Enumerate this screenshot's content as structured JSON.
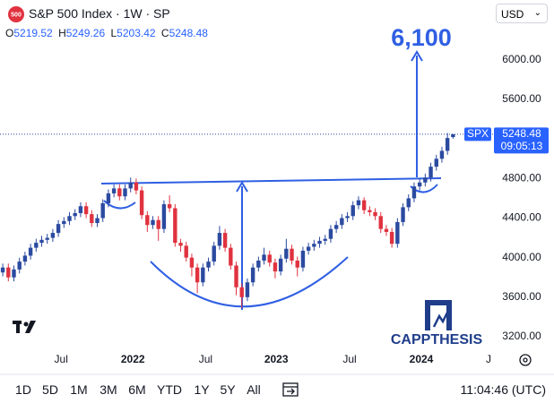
{
  "header": {
    "logo": "500",
    "title": "S&P 500 Index · 1W · SP",
    "currency": "USD",
    "ohlc_labels": [
      "O",
      "H",
      "L",
      "C"
    ]
  },
  "chart_data": {
    "type": "candlestick",
    "up_color": "#2b4aa0",
    "down_color": "#e0323f",
    "annotation_color": "#2f5fe3",
    "annotation": "6,100",
    "watermark": "CAPPTHESIS",
    "symbol": "SPX",
    "countdown": "09:05:13",
    "xlim": [
      -0.5,
      88.2
    ],
    "xticks": [
      {
        "value": 10.5,
        "label": "Jul"
      },
      {
        "value": 23.4,
        "label": "2022"
      },
      {
        "value": 36.5,
        "label": "Jul"
      },
      {
        "value": 49.2,
        "label": "2023"
      },
      {
        "value": 62.4,
        "label": "Jul"
      },
      {
        "value": 75.3,
        "label": "2024"
      },
      {
        "value": 87.4,
        "label": "J"
      }
    ],
    "ylim": [
      3073,
      6606
    ],
    "yticks": [
      {
        "value": 3200,
        "label": "3200.00"
      },
      {
        "value": 3600,
        "label": "3600.00"
      },
      {
        "value": 4000,
        "label": "4000.00"
      },
      {
        "value": 4400,
        "label": "4400.00"
      },
      {
        "value": 4800,
        "label": "4800.00"
      },
      {
        "value": 5600,
        "label": "5600.00"
      },
      {
        "value": 6000,
        "label": "6000.00"
      }
    ],
    "open": [
      3850,
      3900,
      3800,
      3880,
      3960,
      4020,
      4100,
      4150,
      4180,
      4200,
      4250,
      4340,
      4370,
      4420,
      4450,
      4520,
      4440,
      4350,
      4400,
      4550,
      4650,
      4700,
      4620,
      4700,
      4760,
      4680,
      4430,
      4330,
      4380,
      4290,
      4540,
      4500,
      4150,
      4120,
      4000,
      3900,
      3750,
      3900,
      3960,
      4120,
      4250,
      4100,
      3920,
      3700,
      3600,
      3750,
      3900,
      3970,
      4030,
      3950,
      3860,
      3990,
      4090,
      3970,
      3900,
      4070,
      4110,
      4140,
      4170,
      4190,
      4290,
      4330,
      4400,
      4420,
      4530,
      4580,
      4480,
      4460,
      4420,
      4290,
      4260,
      4140,
      4360,
      4510,
      4600,
      4720,
      4760,
      4810,
      4920,
      5000,
      5080,
      5219.52
    ],
    "high": [
      3940,
      3940,
      3920,
      4000,
      4060,
      4140,
      4190,
      4220,
      4240,
      4290,
      4380,
      4410,
      4460,
      4490,
      4560,
      4560,
      4480,
      4440,
      4590,
      4690,
      4740,
      4740,
      4740,
      4810,
      4800,
      4720,
      4470,
      4420,
      4420,
      4580,
      4630,
      4540,
      4190,
      4160,
      4040,
      3940,
      3940,
      4000,
      4160,
      4320,
      4290,
      4140,
      3960,
      3740,
      3790,
      3940,
      4010,
      4100,
      4070,
      3990,
      4030,
      4190,
      4130,
      4010,
      4110,
      4150,
      4180,
      4210,
      4230,
      4330,
      4370,
      4440,
      4460,
      4570,
      4620,
      4610,
      4520,
      4500,
      4460,
      4330,
      4300,
      4400,
      4550,
      4640,
      4760,
      4800,
      4850,
      4960,
      5040,
      5120,
      5260,
      5249.26
    ],
    "low": [
      3810,
      3760,
      3760,
      3840,
      3920,
      3980,
      4060,
      4110,
      4140,
      4160,
      4210,
      4300,
      4330,
      4380,
      4410,
      4400,
      4310,
      4310,
      4360,
      4510,
      4610,
      4580,
      4580,
      4660,
      4640,
      4390,
      4260,
      4290,
      4170,
      4250,
      4460,
      4110,
      4060,
      3960,
      3810,
      3640,
      3710,
      3860,
      3920,
      4080,
      4060,
      3880,
      3620,
      3490,
      3560,
      3710,
      3860,
      3930,
      3910,
      3790,
      3820,
      3950,
      3930,
      3810,
      3860,
      4030,
      4070,
      4100,
      4130,
      4150,
      4250,
      4290,
      4360,
      4380,
      4490,
      4440,
      4420,
      4380,
      4250,
      4220,
      4100,
      4100,
      4320,
      4470,
      4560,
      4680,
      4720,
      4770,
      4880,
      4960,
      5040,
      5203.42
    ],
    "close": [
      3900,
      3800,
      3880,
      3960,
      4020,
      4100,
      4150,
      4180,
      4200,
      4250,
      4340,
      4370,
      4420,
      4450,
      4520,
      4440,
      4350,
      4400,
      4550,
      4650,
      4700,
      4620,
      4700,
      4760,
      4680,
      4430,
      4330,
      4380,
      4290,
      4540,
      4500,
      4150,
      4120,
      4000,
      3900,
      3750,
      3900,
      3960,
      4120,
      4250,
      4100,
      3920,
      3700,
      3600,
      3750,
      3900,
      3970,
      4030,
      3950,
      3860,
      3990,
      4090,
      3970,
      3900,
      4070,
      4110,
      4140,
      4170,
      4190,
      4290,
      4330,
      4400,
      4420,
      4530,
      4580,
      4480,
      4460,
      4420,
      4290,
      4260,
      4140,
      4360,
      4510,
      4600,
      4720,
      4760,
      4810,
      4920,
      5000,
      5080,
      5210,
      5248.48
    ]
  },
  "footer": {
    "ranges": [
      "1D",
      "5D",
      "1M",
      "3M",
      "6M",
      "YTD",
      "1Y",
      "5Y",
      "All"
    ],
    "clock": "11:04:46 (UTC)"
  }
}
